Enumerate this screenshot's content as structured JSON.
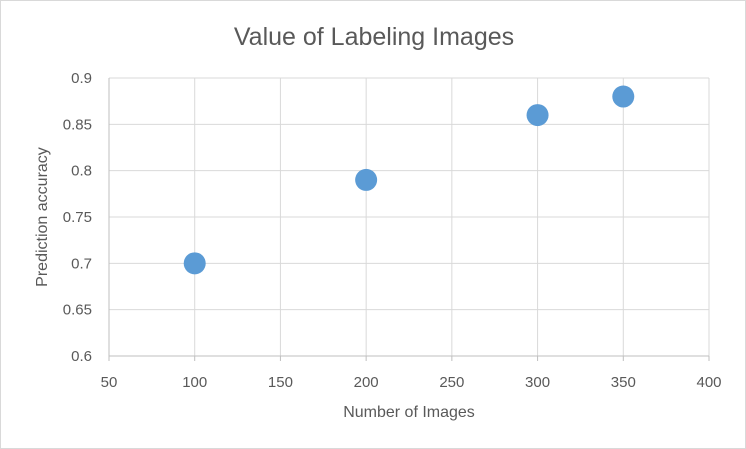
{
  "chart_data": {
    "type": "scatter",
    "title": "Value of Labeling Images",
    "xlabel": "Number of Images",
    "ylabel": "Prediction accuracy",
    "xlim": [
      50,
      400
    ],
    "ylim": [
      0.6,
      0.9
    ],
    "x_ticks": [
      50,
      100,
      150,
      200,
      250,
      300,
      350,
      400
    ],
    "y_ticks": [
      0.6,
      0.65,
      0.7,
      0.75,
      0.8,
      0.85,
      0.9
    ],
    "x_tick_labels": [
      "50",
      "100",
      "150",
      "200",
      "250",
      "300",
      "350",
      "400"
    ],
    "y_tick_labels": [
      "0.6",
      "0.65",
      "0.7",
      "0.75",
      "0.8",
      "0.85",
      "0.9"
    ],
    "grid": true,
    "legend": "none",
    "colors": {
      "marker": "#5b9bd5",
      "grid": "#d9d9d9",
      "text": "#595959"
    },
    "series": [
      {
        "x": [
          100,
          200,
          300,
          350
        ],
        "y": [
          0.7,
          0.79,
          0.86,
          0.88
        ]
      }
    ]
  }
}
